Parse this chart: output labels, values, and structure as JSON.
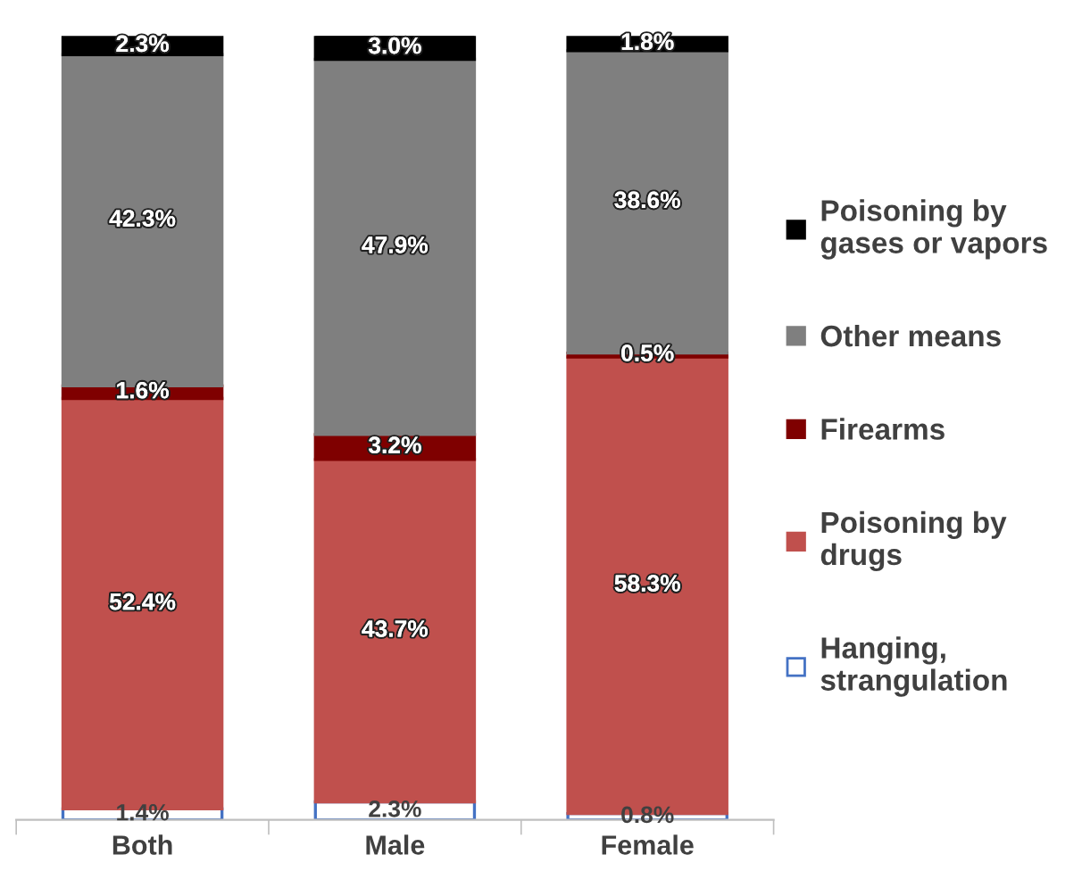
{
  "chart_data": {
    "type": "bar",
    "stacked": true,
    "legend": "right",
    "grid": false,
    "categories": [
      "Both",
      "Male",
      "Female"
    ],
    "series": [
      {
        "name": "Hanging,\nstrangulation",
        "color": "#ffffff",
        "values": [
          1.4,
          2.3,
          0.8
        ],
        "value_labels": [
          "1.4%",
          "2.3%",
          "0.8%"
        ]
      },
      {
        "name": "Poisoning by\ndrugs",
        "color": "#c0504d",
        "values": [
          52.4,
          43.7,
          58.3
        ],
        "value_labels": [
          "52.4%",
          "43.7%",
          "58.3%"
        ]
      },
      {
        "name": "Firearms",
        "color": "#7f0000",
        "values": [
          1.6,
          3.2,
          0.5
        ],
        "value_labels": [
          "1.6%",
          "3.2%",
          "0.5%"
        ]
      },
      {
        "name": "Other means",
        "color": "#7f7f7f",
        "values": [
          42.3,
          47.9,
          38.6
        ],
        "value_labels": [
          "42.3%",
          "47.9%",
          "38.6%"
        ]
      },
      {
        "name": "Poisoning by\ngases or vapors",
        "color": "#000000",
        "values": [
          2.3,
          3.0,
          1.8
        ],
        "value_labels": [
          "2.3%",
          "3.0%",
          "1.8%"
        ]
      }
    ]
  }
}
